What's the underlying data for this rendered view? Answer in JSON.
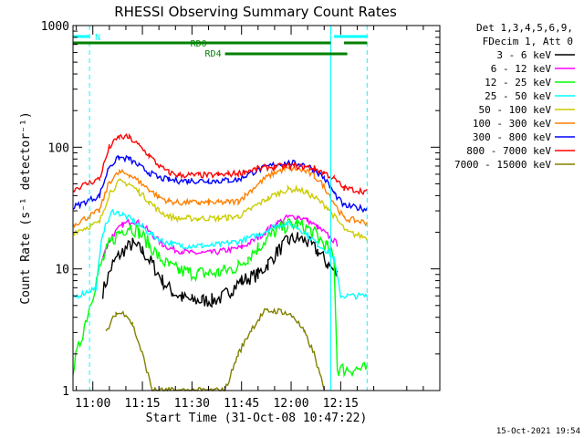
{
  "chart_data": {
    "type": "line",
    "title": "RHESSI Observing Summary Count Rates",
    "xlabel": "Start Time (31-Oct-08 10:47:22)",
    "ylabel": "Count Rate (s⁻¹ detector⁻¹)",
    "yscale": "log",
    "ylim": [
      1,
      1000
    ],
    "xlim_minutes": [
      -6.0,
      105.0
    ],
    "x_tick_labels": [
      "11:00",
      "11:15",
      "11:30",
      "11:45",
      "12:00",
      "12:15"
    ],
    "x_ticks_minutes": [
      0,
      15,
      30,
      45,
      60,
      75
    ],
    "y_tick_labels": [
      "1",
      "10",
      "100",
      "1000"
    ],
    "y_ticks": [
      1,
      10,
      100,
      1000
    ],
    "grid": false,
    "legend_header": [
      "Det 1,3,4,5,6,9,",
      "FDecim 1, Att 0"
    ],
    "legend_placement": "right",
    "series": [
      {
        "name": "3 - 6 keV",
        "color": "#000000",
        "points": [
          [
            0,
            null
          ],
          [
            3,
            6.5
          ],
          [
            6,
            11
          ],
          [
            9,
            14
          ],
          [
            12,
            16
          ],
          [
            15,
            14
          ],
          [
            18,
            11
          ],
          [
            21,
            8
          ],
          [
            24,
            6.5
          ],
          [
            27,
            5.8
          ],
          [
            30,
            5.5
          ],
          [
            33,
            5.5
          ],
          [
            36,
            5.5
          ],
          [
            39,
            5.8
          ],
          [
            42,
            6.8
          ],
          [
            45,
            8
          ],
          [
            50,
            9
          ],
          [
            53,
            11
          ],
          [
            56,
            14
          ],
          [
            59,
            17
          ],
          [
            62,
            18
          ],
          [
            65,
            16.5
          ],
          [
            68,
            14
          ],
          [
            71,
            11
          ],
          [
            74,
            9
          ]
        ]
      },
      {
        "name": "6 - 12 keV",
        "color": "#ff00ff",
        "points": [
          [
            -6,
            null
          ],
          [
            3,
            13
          ],
          [
            6,
            19
          ],
          [
            9,
            23
          ],
          [
            12,
            25
          ],
          [
            15,
            23
          ],
          [
            18,
            19
          ],
          [
            21,
            16
          ],
          [
            24,
            14.5
          ],
          [
            27,
            14
          ],
          [
            30,
            13.5
          ],
          [
            33,
            13.5
          ],
          [
            36,
            13.5
          ],
          [
            39,
            14
          ],
          [
            42,
            14.5
          ],
          [
            45,
            15
          ],
          [
            50,
            18
          ],
          [
            53,
            21
          ],
          [
            56,
            24
          ],
          [
            59,
            26.5
          ],
          [
            62,
            27
          ],
          [
            65,
            25
          ],
          [
            68,
            22
          ],
          [
            71,
            19
          ],
          [
            74,
            16
          ]
        ]
      },
      {
        "name": "12 - 25 keV",
        "color": "#00ff00",
        "points": [
          [
            -6,
            1.5
          ],
          [
            2,
            10
          ],
          [
            5,
            16
          ],
          [
            8,
            20
          ],
          [
            11,
            22.5
          ],
          [
            14,
            20
          ],
          [
            17,
            16
          ],
          [
            20,
            12.5
          ],
          [
            23,
            10.5
          ],
          [
            26,
            9.7
          ],
          [
            29,
            9.3
          ],
          [
            32,
            9.2
          ],
          [
            35,
            9.2
          ],
          [
            38,
            9.3
          ],
          [
            41,
            9.8
          ],
          [
            44,
            10.5
          ],
          [
            47,
            12.5
          ],
          [
            50,
            15
          ],
          [
            53,
            18
          ],
          [
            56,
            21
          ],
          [
            59,
            23
          ],
          [
            62,
            23
          ],
          [
            65,
            21.5
          ],
          [
            68,
            18.5
          ],
          [
            71,
            15
          ],
          [
            73,
            12
          ],
          [
            74,
            1.5
          ],
          [
            83,
            1.5
          ]
        ]
      },
      {
        "name": "25 - 50 keV",
        "color": "#00ffff",
        "points": [
          [
            -6,
            5.8
          ],
          [
            1,
            7
          ],
          [
            3,
            20
          ],
          [
            6,
            30
          ],
          [
            9,
            28
          ],
          [
            12,
            25
          ],
          [
            15,
            22
          ],
          [
            18,
            19
          ],
          [
            21,
            17
          ],
          [
            24,
            16
          ],
          [
            27,
            15.5
          ],
          [
            30,
            15.5
          ],
          [
            33,
            15.5
          ],
          [
            36,
            15.5
          ],
          [
            39,
            16
          ],
          [
            42,
            16.5
          ],
          [
            45,
            17
          ],
          [
            50,
            19
          ],
          [
            53,
            21
          ],
          [
            56,
            23
          ],
          [
            59,
            23.5
          ],
          [
            62,
            22
          ],
          [
            65,
            19
          ],
          [
            68,
            16
          ],
          [
            71,
            14
          ],
          [
            73,
            12
          ],
          [
            75,
            6
          ],
          [
            83,
            6
          ]
        ]
      },
      {
        "name": "50 - 100 keV",
        "color": "#cccc00",
        "points": [
          [
            -6,
            20
          ],
          [
            2,
            24
          ],
          [
            5,
            42
          ],
          [
            8,
            52
          ],
          [
            11,
            50
          ],
          [
            14,
            43
          ],
          [
            17,
            36
          ],
          [
            20,
            30
          ],
          [
            23,
            27
          ],
          [
            26,
            26
          ],
          [
            29,
            26
          ],
          [
            32,
            26
          ],
          [
            35,
            26
          ],
          [
            38,
            26
          ],
          [
            41,
            26.5
          ],
          [
            44,
            27
          ],
          [
            47,
            30
          ],
          [
            50,
            34
          ],
          [
            53,
            38
          ],
          [
            56,
            42
          ],
          [
            59,
            45
          ],
          [
            62,
            45
          ],
          [
            65,
            42
          ],
          [
            68,
            37
          ],
          [
            71,
            32
          ],
          [
            74,
            25
          ],
          [
            77,
            20
          ],
          [
            83,
            18
          ]
        ]
      },
      {
        "name": "100 - 300 keV",
        "color": "#ff8000",
        "points": [
          [
            -6,
            23
          ],
          [
            2,
            30
          ],
          [
            5,
            52
          ],
          [
            8,
            62
          ],
          [
            11,
            60
          ],
          [
            14,
            52
          ],
          [
            17,
            45
          ],
          [
            20,
            39
          ],
          [
            23,
            36
          ],
          [
            26,
            35
          ],
          [
            29,
            35
          ],
          [
            32,
            35
          ],
          [
            35,
            35
          ],
          [
            38,
            35
          ],
          [
            41,
            35.5
          ],
          [
            44,
            36
          ],
          [
            46,
            40
          ],
          [
            49,
            47
          ],
          [
            52,
            55
          ],
          [
            55,
            62
          ],
          [
            58,
            66
          ],
          [
            61,
            67
          ],
          [
            64,
            64
          ],
          [
            67,
            58
          ],
          [
            70,
            48
          ],
          [
            73,
            35
          ],
          [
            76,
            26
          ],
          [
            83,
            24
          ]
        ]
      },
      {
        "name": "300 - 800 keV",
        "color": "#0000ff",
        "points": [
          [
            -6,
            32
          ],
          [
            2,
            40
          ],
          [
            5,
            70
          ],
          [
            8,
            82
          ],
          [
            11,
            80
          ],
          [
            14,
            70
          ],
          [
            17,
            62
          ],
          [
            20,
            56
          ],
          [
            23,
            54
          ],
          [
            26,
            53
          ],
          [
            29,
            53
          ],
          [
            32,
            53
          ],
          [
            35,
            53
          ],
          [
            38,
            53
          ],
          [
            41,
            53.5
          ],
          [
            44,
            54
          ],
          [
            46,
            58
          ],
          [
            49,
            63
          ],
          [
            52,
            68
          ],
          [
            55,
            72
          ],
          [
            58,
            74
          ],
          [
            61,
            74
          ],
          [
            64,
            72
          ],
          [
            67,
            66
          ],
          [
            70,
            56
          ],
          [
            73,
            42
          ],
          [
            76,
            33
          ],
          [
            83,
            31
          ]
        ]
      },
      {
        "name": "800 - 7000 keV",
        "color": "#ff0000",
        "points": [
          [
            -6,
            45
          ],
          [
            2,
            55
          ],
          [
            5,
            100
          ],
          [
            8,
            122
          ],
          [
            11,
            120
          ],
          [
            14,
            103
          ],
          [
            17,
            86
          ],
          [
            20,
            70
          ],
          [
            23,
            62
          ],
          [
            26,
            59
          ],
          [
            29,
            59
          ],
          [
            32,
            59
          ],
          [
            35,
            59
          ],
          [
            38,
            59
          ],
          [
            41,
            60
          ],
          [
            44,
            61
          ],
          [
            46,
            63
          ],
          [
            49,
            66
          ],
          [
            52,
            68
          ],
          [
            55,
            69
          ],
          [
            58,
            70
          ],
          [
            61,
            70
          ],
          [
            64,
            69
          ],
          [
            67,
            67
          ],
          [
            70,
            62
          ],
          [
            73,
            55
          ],
          [
            76,
            46
          ],
          [
            83,
            43
          ]
        ]
      },
      {
        "name": "7000 - 15000 keV",
        "color": "#808000",
        "points": [
          [
            -6,
            null
          ],
          [
            4,
            3
          ],
          [
            7,
            4.3
          ],
          [
            10,
            4.3
          ],
          [
            12,
            3.5
          ],
          [
            15,
            2
          ],
          [
            18,
            1
          ],
          [
            40,
            1
          ],
          [
            44,
            2
          ],
          [
            48,
            3.2
          ],
          [
            52,
            4.5
          ],
          [
            57,
            4.5
          ],
          [
            61,
            4
          ],
          [
            64,
            3
          ],
          [
            67,
            2
          ],
          [
            70,
            1
          ]
        ]
      }
    ],
    "annotations": {
      "attenuator_bar": {
        "label": "N",
        "color": "#00ffff",
        "start": -6,
        "end": -1,
        "resume_start": 73,
        "resume_end": 83
      },
      "rd0_bar": {
        "label": "RD0",
        "color": "#008000",
        "start": -6,
        "end": 72,
        "resume_start": 76,
        "resume_end": 83
      },
      "rd4_bar": {
        "label": "RD4",
        "color": "#008000",
        "start": 40,
        "end": 77
      },
      "night_start_minutes": [
        -1.0,
        73.0
      ],
      "night_end_minutes": [
        72.0,
        83.0
      ]
    },
    "timestamp": "15-Oct-2021 19:54"
  }
}
